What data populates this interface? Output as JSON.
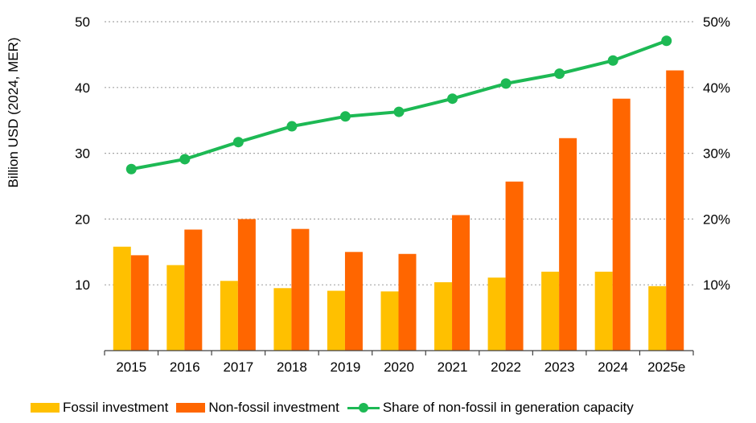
{
  "chart_data": {
    "type": "bar+line",
    "categories": [
      "2015",
      "2016",
      "2017",
      "2018",
      "2019",
      "2020",
      "2021",
      "2022",
      "2023",
      "2024",
      "2025e"
    ],
    "series": [
      {
        "name": "Fossil investment",
        "kind": "bar",
        "axis": "left",
        "color": "#FFC000",
        "values": [
          15.8,
          13.0,
          10.6,
          9.5,
          9.1,
          9.0,
          10.4,
          11.1,
          12.0,
          12.0,
          9.8
        ]
      },
      {
        "name": "Non-fossil investment",
        "kind": "bar",
        "axis": "left",
        "color": "#FF6600",
        "values": [
          14.5,
          18.4,
          20.0,
          18.5,
          15.0,
          14.7,
          20.6,
          25.7,
          32.3,
          38.3,
          42.6
        ]
      },
      {
        "name": "Share of non-fossil in generation capacity",
        "kind": "line",
        "axis": "right",
        "color": "#1DB954",
        "values": [
          27.6,
          29.1,
          31.7,
          34.1,
          35.6,
          36.3,
          38.3,
          40.6,
          42.1,
          44.1,
          47.1
        ]
      }
    ],
    "ylabel": "Billion USD (2024, MER)",
    "y_ticks": [
      "10",
      "20",
      "30",
      "40",
      "50"
    ],
    "y2_ticks": [
      "10%",
      "20%",
      "30%",
      "40%",
      "50%"
    ],
    "ylim": [
      0,
      50
    ],
    "y2lim": [
      0,
      50
    ],
    "grid": "dotted-horizontal",
    "legend_position": "bottom"
  }
}
